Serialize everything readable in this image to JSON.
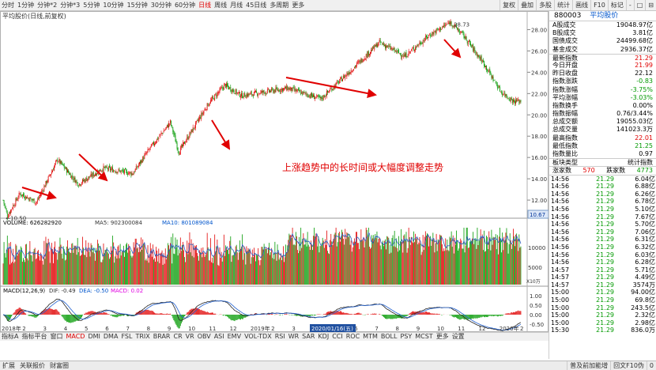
{
  "toolbar": {
    "periods": [
      "分时",
      "1分钟",
      "分钟*2",
      "分钟*3",
      "5分钟",
      "10分钟",
      "15分钟",
      "30分钟",
      "60分钟",
      "日线",
      "周线",
      "月线",
      "45日线",
      "多周期",
      "更多"
    ],
    "selected": "日线",
    "right": [
      "复权",
      "叠加",
      "多股",
      "统计",
      "画线",
      "F10",
      "标记",
      "-",
      "□",
      "⊟"
    ]
  },
  "chart_title": "平均股价(日线,前复权)",
  "annotation": "上涨趋势中的长时间或大幅度调整走势",
  "price_axis": [
    "28.00",
    "26.00",
    "24.00",
    "22.00",
    "20.00",
    "18.00",
    "16.00",
    "14.00",
    "12.00"
  ],
  "price_badge": "10.67",
  "hi_label": "28.73",
  "lo_label": "←10.50",
  "volume_header": {
    "label": "VOLUME: 626282920",
    "ma5": "MA5: 902300084",
    "ma10": "MA10: 801089084"
  },
  "volume_axis": [
    "10000",
    "5000"
  ],
  "volume_unit": "X10万",
  "macd_header": {
    "label": "MACD(12,26,9)",
    "dif": "DIF: -0.49",
    "dea": "DEA: -0.50",
    "macd": "MACD: 0.02"
  },
  "macd_axis": [
    "1.00",
    "0.50",
    "0.00",
    "-0.50"
  ],
  "date_axis": [
    "2018年",
    "2",
    "3",
    "4",
    "5",
    "6",
    "7",
    "8",
    "9",
    "10",
    "11",
    "12",
    "2019年",
    "2",
    "3",
    "4",
    "5",
    "6",
    "7",
    "8",
    "9",
    "10",
    "11",
    "12",
    "2020年",
    "2"
  ],
  "cursor_date": "2020/01/16(五)",
  "bottom_tabs": [
    "指标A",
    "指标平台",
    "窗口",
    "MACD",
    "DMI",
    "DMA",
    "FSL",
    "TRIX",
    "BRAR",
    "CR",
    "VR",
    "OBV",
    "ASI",
    "EMV",
    "VOL-TDX",
    "RSI",
    "WR",
    "SAR",
    "KDJ",
    "CCI",
    "ROC",
    "MTM",
    "BOLL",
    "PSY",
    "MCST",
    "更多",
    "设置"
  ],
  "bottom_selected": "MACD",
  "right_panel": {
    "code": "880003",
    "name": "平均股价",
    "block1": [
      [
        "A股成交",
        "19048.97亿"
      ],
      [
        "B股成交",
        "3.81亿"
      ],
      [
        "国债成交",
        "24499.68亿"
      ],
      [
        "基金成交",
        "2936.37亿"
      ]
    ],
    "block2": [
      [
        "最新指数",
        "21.29",
        "up"
      ],
      [
        "今日开盘",
        "21.99",
        "up"
      ],
      [
        "昨日收盘",
        "22.12",
        ""
      ],
      [
        "指数涨跌",
        "-0.83",
        "dn"
      ],
      [
        "指数涨幅",
        "-3.75%",
        "dn"
      ],
      [
        "平均涨幅",
        "-3.03%",
        "dn"
      ],
      [
        "指数换手",
        "0.00%",
        ""
      ],
      [
        "指数振幅",
        "0.76/3.44%",
        ""
      ],
      [
        "总成交额",
        "19055.03亿",
        ""
      ],
      [
        "总成交量",
        "141023.3万",
        ""
      ],
      [
        "最高指数",
        "22.01",
        "up"
      ],
      [
        "最低指数",
        "21.25",
        "dn"
      ],
      [
        "指数量比",
        "0.97",
        ""
      ]
    ],
    "band_label": "板块类型",
    "band_val": "统计指数",
    "rise_label": "涨家数",
    "rise": "570",
    "fall_label": "跌家数",
    "fall": "4773",
    "ticks": [
      [
        "14:56",
        "21.29",
        "6.04亿"
      ],
      [
        "14:56",
        "21.29",
        "6.88亿"
      ],
      [
        "14:56",
        "21.29",
        "6.26亿"
      ],
      [
        "14:56",
        "21.29",
        "6.78亿"
      ],
      [
        "14:56",
        "21.29",
        "5.10亿"
      ],
      [
        "14:56",
        "21.29",
        "7.67亿"
      ],
      [
        "14:56",
        "21.29",
        "5.70亿"
      ],
      [
        "14:56",
        "21.29",
        "7.06亿"
      ],
      [
        "14:56",
        "21.29",
        "6.31亿"
      ],
      [
        "14:56",
        "21.29",
        "6.32亿"
      ],
      [
        "14:56",
        "21.29",
        "6.03亿"
      ],
      [
        "14:56",
        "21.29",
        "6.28亿"
      ],
      [
        "14:57",
        "21.29",
        "5.71亿"
      ],
      [
        "14:57",
        "21.29",
        "4.49亿"
      ],
      [
        "14:57",
        "21.29",
        "3574万"
      ],
      [
        "15:00",
        "21.29",
        "94.00亿"
      ],
      [
        "15:00",
        "21.29",
        "69.8亿"
      ],
      [
        "15:00",
        "21.29",
        "243.5亿"
      ],
      [
        "15:00",
        "21.29",
        "2.32亿"
      ],
      [
        "15:00",
        "21.29",
        "2.98亿"
      ],
      [
        "15:30",
        "21.29",
        "836.0万"
      ]
    ],
    "side_tabs": [
      "笔",
      "价",
      "细",
      "势",
      "联",
      "值",
      "主",
      "筹"
    ]
  },
  "status_bar": {
    "left": [
      "扩展",
      "关联报价",
      "财富圈"
    ],
    "right": [
      "普及前加能增",
      "回文F10伪"
    ],
    "end": "0"
  },
  "chart_data": {
    "type": "candlestick",
    "ylim": [
      10.5,
      28.73
    ],
    "key_points": [
      [
        0,
        12.0
      ],
      [
        5,
        10.5
      ],
      [
        20,
        12.6
      ],
      [
        40,
        11.8
      ],
      [
        65,
        15.8
      ],
      [
        90,
        13.5
      ],
      [
        120,
        15.0
      ],
      [
        155,
        14.5
      ],
      [
        175,
        16.8
      ],
      [
        200,
        19.3
      ],
      [
        210,
        16.5
      ],
      [
        245,
        21.0
      ],
      [
        265,
        22.8
      ],
      [
        285,
        21.8
      ],
      [
        340,
        22.5
      ],
      [
        380,
        21.5
      ],
      [
        420,
        24.5
      ],
      [
        450,
        26.8
      ],
      [
        480,
        25.5
      ],
      [
        510,
        27.5
      ],
      [
        535,
        28.7
      ],
      [
        550,
        27.5
      ],
      [
        575,
        24.8
      ],
      [
        595,
        22.2
      ],
      [
        610,
        21.29
      ]
    ],
    "arrows": [
      [
        28,
        237,
        70,
        250
      ],
      [
        100,
        195,
        135,
        228
      ],
      [
        268,
        152,
        290,
        188
      ],
      [
        362,
        98,
        475,
        120
      ],
      [
        562,
        50,
        582,
        72
      ]
    ]
  }
}
